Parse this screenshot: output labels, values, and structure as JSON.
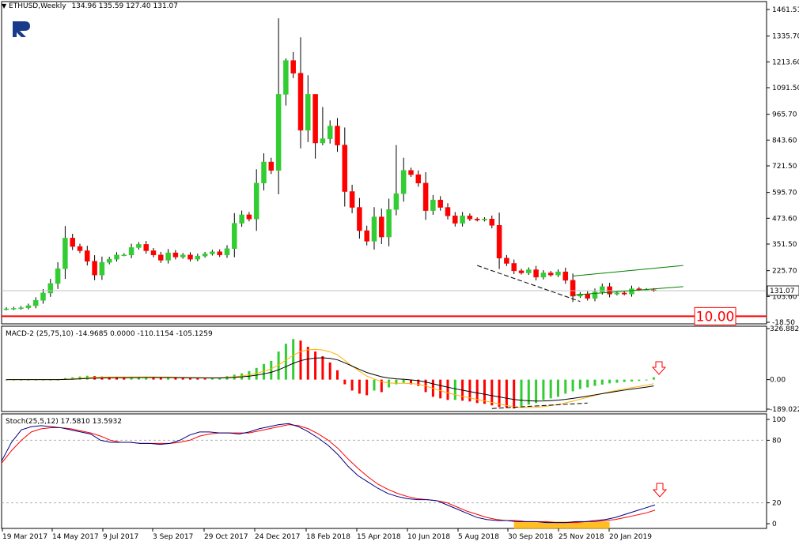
{
  "header": {
    "symbol_tf": "ETHUSD,Weekly",
    "ohlc": "134.96 135.59 127.40 131.07"
  },
  "logo": {
    "name": "rf-logo-icon"
  },
  "colors": {
    "bull": "#32CD32",
    "bear": "#FF0000",
    "level_line": "#FF0000",
    "channel": "#008000",
    "macd_signal": "#FFB300",
    "macd_main": "#000000",
    "stoch_main": "#000080",
    "stoch_signal": "#FF0000",
    "highlight": "#FFB300",
    "arrow": "#FF0000"
  },
  "chart_data": [
    {
      "type": "candlestick",
      "title": "ETHUSD,Weekly",
      "price_labels": [
        "1461.51",
        "1335.70",
        "1213.60",
        "1091.50",
        "965.70",
        "843.60",
        "721.50",
        "595.70",
        "473.60",
        "351.50",
        "225.70",
        "103.60",
        "-18.50"
      ],
      "ylim": [
        -18.5,
        1461.51
      ],
      "current_price": 131.07,
      "current_price_label": "131.07",
      "level_value": 10,
      "level_label": "10.00",
      "x_labels": [
        "19 Mar 2017",
        "14 May 2017",
        "9 Jul 2017",
        "3 Sep 2017",
        "29 Oct 2017",
        "24 Dec 2017",
        "18 Feb 2018",
        "15 Apr 2018",
        "10 Jun 2018",
        "5 Aug 2018",
        "30 Sep 2018",
        "25 Nov 2018",
        "20 Jan 2019"
      ],
      "close": [
        45,
        47,
        50,
        60,
        85,
        120,
        165,
        235,
        380,
        340,
        320,
        270,
        205,
        265,
        280,
        300,
        300,
        335,
        350,
        320,
        300,
        275,
        310,
        290,
        300,
        280,
        295,
        305,
        315,
        300,
        330,
        450,
        490,
        470,
        640,
        740,
        700,
        1060,
        1220,
        1160,
        890,
        1060,
        830,
        850,
        910,
        820,
        600,
        525,
        415,
        365,
        480,
        385,
        515,
        590,
        700,
        680,
        640,
        510,
        560,
        525,
        485,
        450,
        485,
        470,
        465,
        470,
        440,
        285,
        260,
        225,
        215,
        230,
        195,
        215,
        205,
        220,
        180,
        105,
        115,
        95,
        125,
        150,
        115,
        120,
        115,
        140,
        135,
        135,
        131
      ],
      "series": []
    },
    {
      "type": "line",
      "title": "MACD-2 (25,75,10) -14.9685 0.0000 -110.1154 -105.1259",
      "price_labels": [
        "326.8824",
        "0.00",
        "-189.0220"
      ],
      "ylim": [
        -189.022,
        326.8824
      ],
      "histogram": [
        0,
        0,
        0,
        0,
        0,
        0,
        0,
        0,
        10,
        15,
        20,
        25,
        23,
        20,
        18,
        16,
        14,
        14,
        16,
        16,
        14,
        12,
        13,
        11,
        10,
        9,
        8,
        7,
        9,
        11,
        22,
        32,
        40,
        55,
        75,
        100,
        120,
        180,
        230,
        260,
        250,
        210,
        180,
        150,
        110,
        60,
        -30,
        -70,
        -90,
        -100,
        -70,
        -80,
        -50,
        -30,
        -20,
        -30,
        -40,
        -80,
        -110,
        -120,
        -130,
        -130,
        -135,
        -140,
        -150,
        -155,
        -165,
        -175,
        -180,
        -185,
        -170,
        -160,
        -150,
        -130,
        -120,
        -110,
        -90,
        -75,
        -60,
        -50,
        -40,
        -32,
        -24,
        -20,
        -15,
        -12,
        -8,
        0,
        15
      ],
      "series": []
    },
    {
      "type": "line",
      "title": "Stoch(25,5,12) 17.5810 13.5932",
      "price_labels": [
        "100",
        "80",
        "20",
        "0"
      ],
      "ylim": [
        0,
        100
      ],
      "levels": [
        80,
        20
      ],
      "main": [
        60,
        78,
        90,
        93,
        94,
        93,
        92,
        90,
        88,
        86,
        80,
        78,
        78,
        78,
        77,
        77,
        76,
        77,
        80,
        85,
        88,
        88,
        87,
        87,
        86,
        88,
        91,
        93,
        95,
        96,
        93,
        88,
        82,
        75,
        66,
        55,
        46,
        40,
        34,
        29,
        26,
        24,
        23,
        23,
        22,
        18,
        14,
        10,
        6,
        4,
        3,
        3,
        2,
        2,
        2,
        1,
        1,
        1,
        2,
        2,
        3,
        4,
        6,
        9,
        12,
        15,
        18
      ],
      "signal": [
        58,
        70,
        80,
        88,
        91,
        92,
        92,
        91,
        89,
        87,
        84,
        80,
        78,
        78,
        77,
        77,
        77,
        77,
        78,
        80,
        84,
        86,
        87,
        87,
        87,
        87,
        89,
        91,
        93,
        95,
        94,
        91,
        86,
        80,
        72,
        62,
        53,
        45,
        38,
        33,
        29,
        26,
        24,
        23,
        22,
        20,
        16,
        12,
        9,
        6,
        4,
        3,
        3,
        2,
        2,
        2,
        1,
        1,
        1,
        2,
        2,
        3,
        4,
        6,
        8,
        10,
        13
      ],
      "series": []
    }
  ]
}
